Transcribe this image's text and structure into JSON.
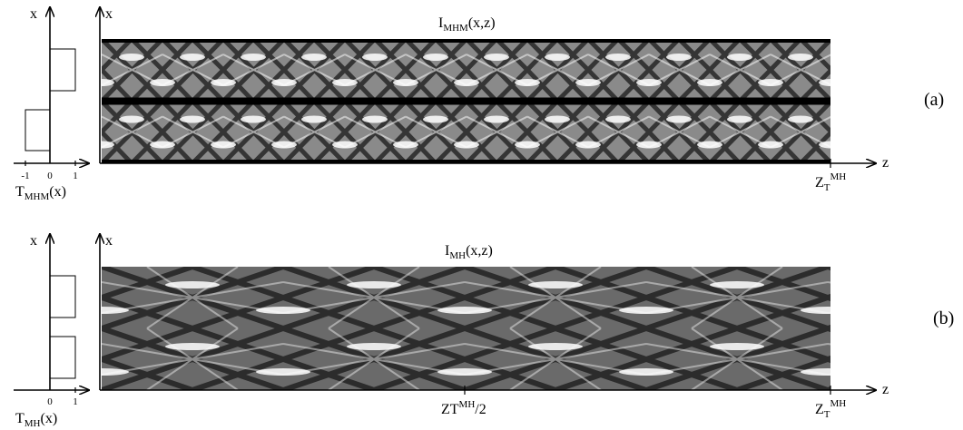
{
  "panel_a": {
    "x_label_left": "x",
    "x_label_main": "x",
    "title": {
      "base": "I",
      "sub": "MHM",
      "tail": "(x,z)"
    },
    "ticks": [
      "-1",
      "0",
      "1"
    ],
    "transmission_label": {
      "base": "T",
      "sub": "MHM",
      "tail": "(x)"
    },
    "z_label": "z",
    "z_tick": {
      "base": "Z",
      "sub": "T",
      "sup": "MH"
    },
    "tag": "(a)"
  },
  "panel_b": {
    "x_label_left": "x",
    "x_label_main": "x",
    "title": {
      "base": "I",
      "sub": "MH",
      "tail": "(x,z)"
    },
    "ticks": [
      "0",
      "1"
    ],
    "transmission_label": {
      "base": "T",
      "sub": "MH",
      "tail": "(x)"
    },
    "z_label": "z",
    "z_mid_tick": {
      "base": "ZT",
      "sup": "MH",
      "tail": "/2"
    },
    "z_tick": {
      "base": "Z",
      "sub": "T",
      "sup": "MH"
    },
    "tag": "(b)"
  }
}
